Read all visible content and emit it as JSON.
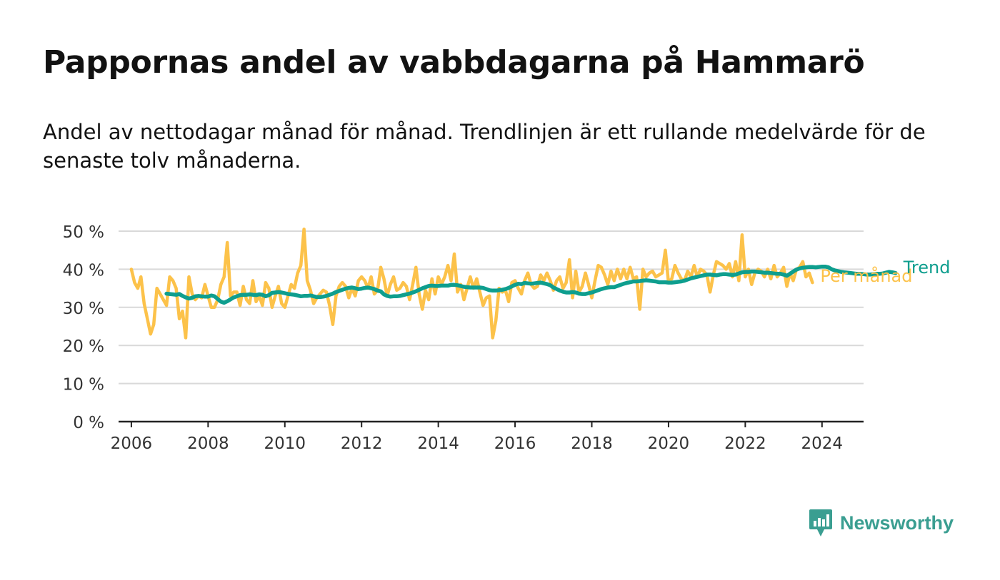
{
  "title": "Pappornas andel av vabbdagarna på Hammarö",
  "subtitle": "Andel av nettodagar månad för månad. Trendlinjen är ett rullande medelvärde för de senaste tolv månaderna.",
  "brand": {
    "name": "Newsworthy",
    "icon": "newsworthy-logo-icon",
    "color": "#3a9e91"
  },
  "colors": {
    "monthly": "#fcc24a",
    "trend": "#0e9e8e",
    "grid": "#d9d9d9",
    "axis": "#222222"
  },
  "chart_data": {
    "type": "line",
    "title": "Pappornas andel av vabbdagarna på Hammarö",
    "xlabel": "",
    "ylabel": "",
    "xlim": [
      "2005-09",
      "2025-02"
    ],
    "ylim": [
      0,
      50
    ],
    "grid": true,
    "y_ticks": [
      {
        "value": 0,
        "label": "0 %"
      },
      {
        "value": 10,
        "label": "10 %"
      },
      {
        "value": 20,
        "label": "20 %"
      },
      {
        "value": 30,
        "label": "30 %"
      },
      {
        "value": 40,
        "label": "40 %"
      },
      {
        "value": 50,
        "label": "50 %"
      }
    ],
    "x_ticks": [
      "2006",
      "2008",
      "2010",
      "2012",
      "2014",
      "2016",
      "2018",
      "2020",
      "2022",
      "2024"
    ],
    "series": [
      {
        "name": "Per månad",
        "color": "#fcc24a",
        "start": "2006-01",
        "frequency": "monthly",
        "values": [
          40,
          36.5,
          35,
          38,
          31,
          27,
          23,
          25.5,
          35,
          33.5,
          32,
          30.5,
          38,
          37,
          35,
          27,
          29,
          22,
          38,
          33.5,
          32,
          33,
          32.5,
          36,
          33,
          30,
          30,
          32,
          36,
          38,
          47,
          33,
          34,
          34,
          30.5,
          35.5,
          32,
          31,
          37,
          31.5,
          33,
          30.5,
          36.5,
          35,
          30,
          33,
          35.5,
          31,
          30,
          33,
          36,
          35,
          39,
          41,
          50.5,
          37,
          34.5,
          31,
          32.5,
          33.5,
          34.5,
          34,
          30.5,
          25.5,
          33,
          35.5,
          36.5,
          35.5,
          32.5,
          35,
          33,
          37,
          38,
          37,
          35,
          38,
          33.5,
          34.5,
          40.5,
          37.5,
          33,
          36,
          38,
          34.5,
          35,
          36.5,
          35.5,
          32,
          36,
          40.5,
          33.5,
          29.5,
          34.5,
          32,
          37.5,
          33.5,
          38,
          36,
          38,
          41,
          37,
          44,
          34,
          36,
          32,
          35,
          38,
          35,
          37.5,
          34,
          30.5,
          32.5,
          33,
          22,
          26.5,
          35,
          34,
          34.5,
          31.5,
          36.5,
          37,
          35,
          33.5,
          37,
          39,
          36,
          35,
          35.5,
          38.5,
          37,
          39,
          37,
          34.5,
          37,
          38,
          35,
          36.5,
          42.5,
          32.5,
          39.5,
          34,
          35.5,
          39,
          36,
          32.5,
          37,
          41,
          40.5,
          38.5,
          36,
          39.5,
          37,
          40,
          37.5,
          40,
          37.5,
          40.5,
          37.5,
          38,
          29.5,
          40,
          38,
          39,
          39.5,
          38,
          38.5,
          39,
          45,
          36.5,
          37.5,
          41,
          39,
          37.5,
          37,
          39.5,
          38,
          41,
          38,
          40,
          39.5,
          38.5,
          34,
          38.5,
          42,
          41.5,
          41,
          40,
          41.5,
          38,
          42,
          37,
          49,
          38,
          40,
          36,
          39,
          40,
          39.5,
          38,
          40,
          37.5,
          41,
          38,
          39,
          40.5,
          35.5,
          39,
          37,
          40,
          40.5,
          42,
          38,
          39,
          36.5
        ]
      },
      {
        "name": "Trend",
        "color": "#0e9e8e",
        "start": "2006-12",
        "frequency": "monthly",
        "values": [
          33.6,
          33.5,
          33.4,
          33.3,
          33.5,
          33.0,
          32.6,
          32.3,
          32.5,
          32.9,
          33.0,
          32.9,
          32.8,
          32.8,
          33.1,
          32.9,
          32.2,
          31.5,
          31.2,
          31.6,
          32.1,
          32.6,
          32.9,
          33.2,
          33.3,
          33.3,
          33.4,
          33.3,
          33.2,
          33.4,
          33.3,
          32.9,
          33.2,
          33.8,
          33.9,
          34.0,
          33.9,
          33.7,
          33.5,
          33.4,
          33.3,
          33.1,
          32.9,
          33.0,
          33.0,
          33.1,
          32.9,
          32.7,
          32.7,
          32.8,
          33.0,
          33.3,
          33.6,
          34.0,
          34.3,
          34.6,
          34.9,
          35.1,
          35.2,
          35.0,
          34.8,
          34.9,
          35.1,
          35.2,
          35.0,
          34.8,
          34.4,
          34.2,
          33.4,
          33.0,
          32.8,
          32.9,
          32.9,
          33.0,
          33.2,
          33.4,
          33.6,
          33.9,
          34.2,
          34.6,
          35.0,
          35.3,
          35.6,
          35.7,
          35.6,
          35.6,
          35.7,
          35.7,
          35.7,
          35.9,
          35.9,
          35.8,
          35.6,
          35.4,
          35.3,
          35.2,
          35.2,
          35.2,
          35.2,
          35.1,
          34.8,
          34.5,
          34.4,
          34.4,
          34.5,
          34.6,
          34.8,
          35.1,
          35.5,
          35.9,
          36.2,
          36.1,
          36.4,
          36.3,
          36.2,
          36.3,
          36.4,
          36.5,
          36.3,
          36.1,
          35.8,
          35.2,
          34.8,
          34.4,
          34.1,
          33.9,
          33.9,
          34.0,
          33.9,
          33.6,
          33.5,
          33.5,
          33.7,
          33.9,
          34.2,
          34.5,
          34.8,
          35.0,
          35.2,
          35.3,
          35.3,
          35.6,
          35.9,
          36.2,
          36.4,
          36.6,
          36.8,
          36.8,
          36.9,
          37.0,
          37.1,
          37.0,
          36.9,
          36.8,
          36.6,
          36.6,
          36.6,
          36.5,
          36.5,
          36.6,
          36.7,
          36.8,
          37.0,
          37.3,
          37.6,
          37.8,
          38.0,
          38.2,
          38.4,
          38.6,
          38.6,
          38.5,
          38.4,
          38.6,
          38.7,
          38.7,
          38.6,
          38.5,
          38.6,
          38.9,
          39.2,
          39.3,
          39.3,
          39.4,
          39.4,
          39.3,
          39.2,
          39.1,
          39.1,
          39.0,
          38.9,
          38.8,
          38.8,
          38.6,
          38.3,
          38.8,
          39.4,
          39.9,
          40.2,
          40.4,
          40.5,
          40.6,
          40.6,
          40.5,
          40.6,
          40.7,
          40.7,
          40.5,
          40.0,
          39.7,
          39.5,
          39.3,
          39.2,
          39.1,
          39.0,
          38.9,
          38.8,
          38.8,
          38.7,
          38.6,
          38.6,
          38.7,
          38.8,
          38.8,
          38.9,
          39.1,
          39.3,
          39.2,
          39.0
        ]
      }
    ]
  }
}
